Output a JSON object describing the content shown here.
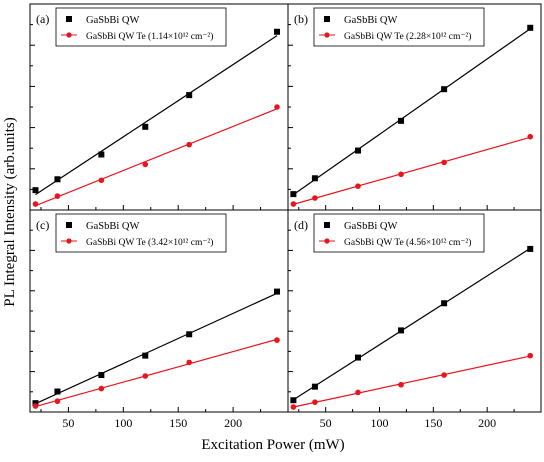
{
  "figure": {
    "ylabel": "PL Integral Intensity (arb.units)",
    "xlabel": "Excitation Power (mW)",
    "x_ticks": [
      50,
      100,
      150,
      200,
      250
    ],
    "colors": {
      "series1": "#000000",
      "series2": "#e8141e"
    }
  },
  "chart_data": [
    {
      "type": "scatter",
      "panel_label": "(a)",
      "xlim": [
        15,
        250
      ],
      "ylim": [
        0,
        100
      ],
      "legend_position": "top-left",
      "series": [
        {
          "name": "GaSbBi QW",
          "marker": "square",
          "x": [
            20,
            40,
            80,
            120,
            160,
            240
          ],
          "y": [
            8,
            13.5,
            26,
            40,
            56,
            88
          ]
        },
        {
          "name": "GaSbBi QW Te (1.14×10¹² cm⁻²)",
          "marker": "circle",
          "x": [
            20,
            40,
            80,
            120,
            160,
            240
          ],
          "y": [
            1,
            5,
            13,
            21,
            31,
            50
          ]
        }
      ]
    },
    {
      "type": "scatter",
      "panel_label": "(b)",
      "xlim": [
        15,
        250
      ],
      "ylim": [
        0,
        100
      ],
      "legend_position": "top-left",
      "series": [
        {
          "name": "GaSbBi QW",
          "marker": "square",
          "x": [
            20,
            40,
            80,
            120,
            160,
            240
          ],
          "y": [
            6,
            14,
            28,
            43,
            59,
            90
          ]
        },
        {
          "name": "GaSbBi QW Te (2.28×10¹² cm⁻²)",
          "marker": "circle",
          "x": [
            20,
            40,
            80,
            120,
            160,
            240
          ],
          "y": [
            1,
            4,
            10,
            16,
            22,
            35
          ]
        }
      ]
    },
    {
      "type": "scatter",
      "panel_label": "(c)",
      "xlim": [
        15,
        250
      ],
      "ylim": [
        0,
        100
      ],
      "legend_position": "top-left",
      "series": [
        {
          "name": "GaSbBi QW",
          "marker": "square",
          "x": [
            20,
            40,
            80,
            120,
            160,
            240
          ],
          "y": [
            2.5,
            8.5,
            17,
            27,
            38,
            60
          ]
        },
        {
          "name": "GaSbBi QW Te (3.42×10¹² cm⁻²)",
          "marker": "circle",
          "x": [
            20,
            40,
            80,
            120,
            160,
            240
          ],
          "y": [
            1,
            3.5,
            10,
            16.5,
            23.5,
            35
          ]
        }
      ]
    },
    {
      "type": "scatter",
      "panel_label": "(d)",
      "xlim": [
        15,
        250
      ],
      "ylim": [
        0,
        100
      ],
      "legend_position": "top-left",
      "series": [
        {
          "name": "GaSbBi QW",
          "marker": "square",
          "x": [
            20,
            40,
            80,
            120,
            160,
            240
          ],
          "y": [
            4,
            11,
            26,
            40,
            54,
            82
          ]
        },
        {
          "name": "GaSbBi QW Te (4.56×10¹² cm⁻²)",
          "marker": "circle",
          "x": [
            20,
            40,
            80,
            120,
            160,
            240
          ],
          "y": [
            0.5,
            3,
            8,
            12,
            17,
            27
          ]
        }
      ]
    }
  ]
}
